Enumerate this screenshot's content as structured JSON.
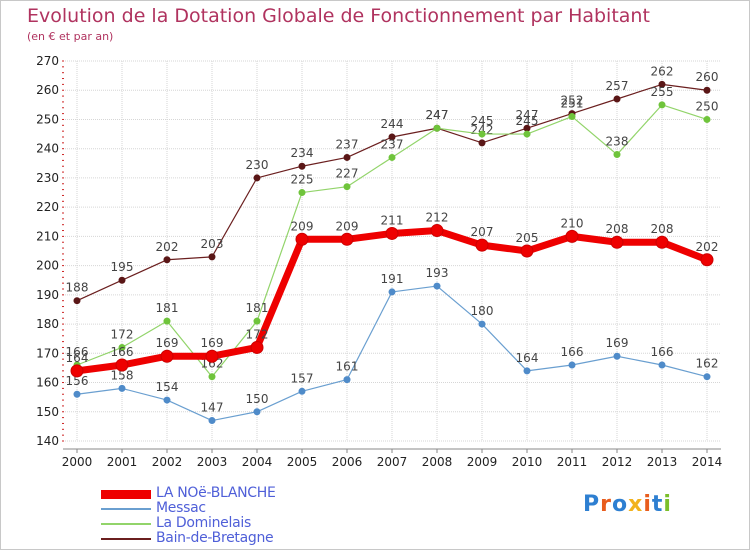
{
  "header": {
    "title": "Evolution de la Dotation Globale de Fonctionnement par Habitant",
    "subtitle": "(en € et par an)"
  },
  "brand": {
    "text": "Proxiti",
    "colors": [
      "#2e7fd1",
      "#e85d1e",
      "#2e7fd1",
      "#f2b21c",
      "#e85d1e",
      "#2e7fd1",
      "#7bbf2a"
    ]
  },
  "chart_data": {
    "type": "line",
    "x": [
      2000,
      2001,
      2002,
      2003,
      2004,
      2005,
      2006,
      2007,
      2008,
      2009,
      2010,
      2011,
      2012,
      2013,
      2014
    ],
    "ylim": [
      140,
      270
    ],
    "yticks": [
      140,
      150,
      160,
      170,
      180,
      190,
      200,
      210,
      220,
      230,
      240,
      250,
      260,
      270
    ],
    "grid": true,
    "legend_position": "bottom",
    "series": [
      {
        "name": "Bain-de-Bretagne",
        "color": "#6b1f1f",
        "marker": "#5a1616",
        "width": 1.2,
        "values": [
          188,
          195,
          202,
          203,
          230,
          234,
          237,
          244,
          247,
          242,
          247,
          252,
          257,
          262,
          260
        ]
      },
      {
        "name": "La Dominelais",
        "color": "#92d46a",
        "marker": "#6fc43b",
        "width": 1.2,
        "values": [
          166,
          172,
          181,
          162,
          181,
          225,
          227,
          237,
          247,
          245,
          245,
          251,
          238,
          255,
          250
        ]
      },
      {
        "name": "Messac",
        "color": "#6a9fd0",
        "marker": "#4f8bc9",
        "width": 1.2,
        "values": [
          156,
          158,
          154,
          147,
          150,
          157,
          161,
          191,
          193,
          180,
          164,
          166,
          169,
          166,
          162
        ]
      },
      {
        "name": "LA NOë-BLANCHE",
        "color": "#ee0000",
        "marker": "#ee0000",
        "width": 7,
        "values": [
          164,
          166,
          169,
          169,
          172,
          209,
          209,
          211,
          212,
          207,
          205,
          210,
          208,
          208,
          202
        ]
      }
    ]
  }
}
